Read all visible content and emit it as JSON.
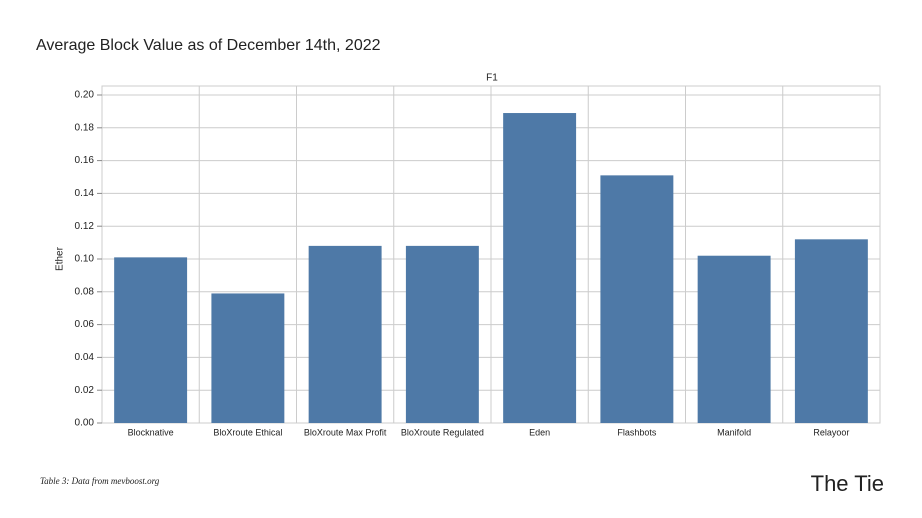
{
  "chart_data": {
    "type": "bar",
    "title": "Average Block Value as of December 14th, 2022",
    "facet_label": "F1",
    "y_label": "Ether",
    "categories": [
      "Blocknative",
      "BloXroute Ethical",
      "BloXroute Max Profit",
      "BloXroute Regulated",
      "Eden",
      "Flashbots",
      "Manifold",
      "Relayoor"
    ],
    "values": [
      0.101,
      0.079,
      0.108,
      0.108,
      0.189,
      0.151,
      0.102,
      0.112
    ],
    "color": "#4e79a7",
    "ylim": [
      0,
      0.2
    ],
    "yticks": [
      {
        "value": 0,
        "label": "0.00"
      },
      0.02,
      0.04,
      0.06,
      0.08,
      {
        "value": 0.1,
        "label": "0.10"
      },
      0.12,
      0.14,
      0.16,
      0.18,
      {
        "value": 0.2,
        "label": "0.20"
      }
    ],
    "grid": true
  },
  "caption": "Table 3: Data from mevboost.org",
  "logo": "The Tie"
}
